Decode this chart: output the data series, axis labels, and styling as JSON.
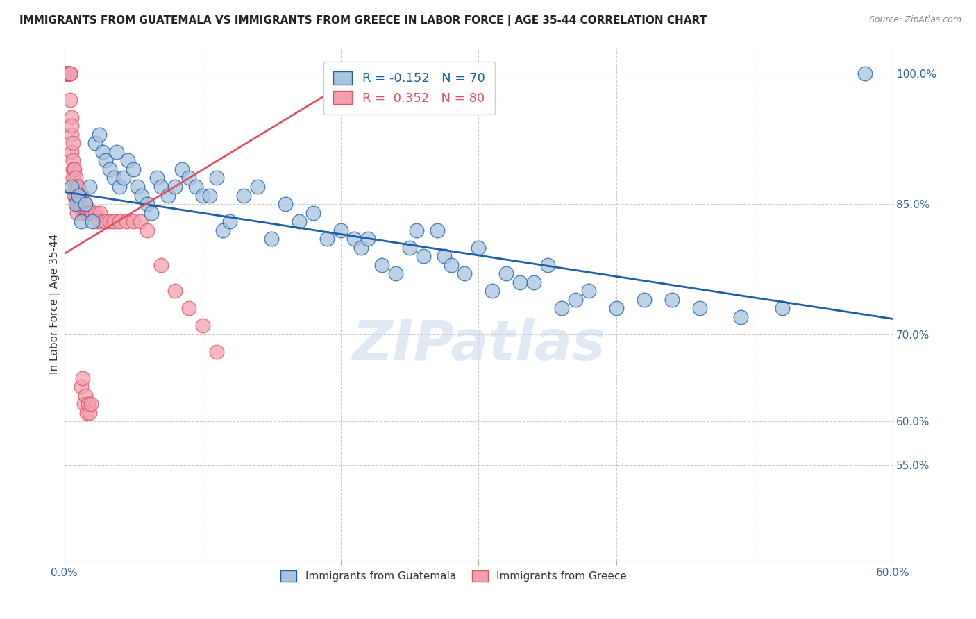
{
  "title": "IMMIGRANTS FROM GUATEMALA VS IMMIGRANTS FROM GREECE IN LABOR FORCE | AGE 35-44 CORRELATION CHART",
  "source": "Source: ZipAtlas.com",
  "ylabel": "In Labor Force | Age 35-44",
  "x_min": 0.0,
  "x_max": 0.6,
  "y_min": 0.44,
  "y_max": 1.03,
  "x_ticks": [
    0.0,
    0.1,
    0.2,
    0.3,
    0.4,
    0.5,
    0.6
  ],
  "x_tick_labels": [
    "0.0%",
    "",
    "",
    "",
    "",
    "",
    "60.0%"
  ],
  "y_ticks_right": [
    0.55,
    0.6,
    0.7,
    0.85,
    1.0
  ],
  "y_tick_labels_right": [
    "55.0%",
    "60.0%",
    "70.0%",
    "85.0%",
    "100.0%"
  ],
  "blue_R": -0.152,
  "blue_N": 70,
  "pink_R": 0.352,
  "pink_N": 80,
  "blue_color": "#a8c4e0",
  "pink_color": "#f4a0b0",
  "blue_line_color": "#1a5fa8",
  "pink_line_color": "#e05060",
  "watermark": "ZIPatlas",
  "blue_line_x0": 0.0,
  "blue_line_y0": 0.864,
  "blue_line_x1": 0.6,
  "blue_line_y1": 0.718,
  "pink_line_x0": 0.0,
  "pink_line_y0": 0.793,
  "pink_line_x1": 0.22,
  "pink_line_y1": 1.005,
  "blue_scatter_x": [
    0.005,
    0.008,
    0.01,
    0.012,
    0.015,
    0.018,
    0.02,
    0.022,
    0.025,
    0.028,
    0.03,
    0.033,
    0.036,
    0.038,
    0.04,
    0.043,
    0.046,
    0.05,
    0.053,
    0.056,
    0.06,
    0.063,
    0.067,
    0.07,
    0.075,
    0.08,
    0.085,
    0.09,
    0.095,
    0.1,
    0.105,
    0.11,
    0.115,
    0.12,
    0.13,
    0.14,
    0.15,
    0.16,
    0.17,
    0.18,
    0.19,
    0.2,
    0.21,
    0.215,
    0.22,
    0.23,
    0.24,
    0.25,
    0.255,
    0.26,
    0.27,
    0.275,
    0.28,
    0.29,
    0.3,
    0.31,
    0.32,
    0.33,
    0.34,
    0.35,
    0.36,
    0.37,
    0.38,
    0.4,
    0.42,
    0.44,
    0.46,
    0.49,
    0.52,
    0.58
  ],
  "blue_scatter_y": [
    0.87,
    0.85,
    0.86,
    0.83,
    0.85,
    0.87,
    0.83,
    0.92,
    0.93,
    0.91,
    0.9,
    0.89,
    0.88,
    0.91,
    0.87,
    0.88,
    0.9,
    0.89,
    0.87,
    0.86,
    0.85,
    0.84,
    0.88,
    0.87,
    0.86,
    0.87,
    0.89,
    0.88,
    0.87,
    0.86,
    0.86,
    0.88,
    0.82,
    0.83,
    0.86,
    0.87,
    0.81,
    0.85,
    0.83,
    0.84,
    0.81,
    0.82,
    0.81,
    0.8,
    0.81,
    0.78,
    0.77,
    0.8,
    0.82,
    0.79,
    0.82,
    0.79,
    0.78,
    0.77,
    0.8,
    0.75,
    0.77,
    0.76,
    0.76,
    0.78,
    0.73,
    0.74,
    0.75,
    0.73,
    0.74,
    0.74,
    0.73,
    0.72,
    0.73,
    1.0
  ],
  "pink_scatter_x": [
    0.001,
    0.001,
    0.001,
    0.001,
    0.001,
    0.001,
    0.002,
    0.002,
    0.002,
    0.002,
    0.002,
    0.002,
    0.003,
    0.003,
    0.003,
    0.003,
    0.003,
    0.004,
    0.004,
    0.004,
    0.004,
    0.005,
    0.005,
    0.005,
    0.005,
    0.006,
    0.006,
    0.006,
    0.006,
    0.007,
    0.007,
    0.007,
    0.008,
    0.008,
    0.008,
    0.009,
    0.009,
    0.009,
    0.01,
    0.01,
    0.01,
    0.011,
    0.011,
    0.012,
    0.012,
    0.013,
    0.013,
    0.014,
    0.015,
    0.015,
    0.016,
    0.017,
    0.018,
    0.019,
    0.02,
    0.022,
    0.024,
    0.026,
    0.028,
    0.03,
    0.033,
    0.036,
    0.04,
    0.045,
    0.05,
    0.055,
    0.06,
    0.07,
    0.08,
    0.09,
    0.1,
    0.11,
    0.012,
    0.013,
    0.014,
    0.015,
    0.016,
    0.017,
    0.018,
    0.019
  ],
  "pink_scatter_y": [
    1.0,
    1.0,
    1.0,
    1.0,
    1.0,
    1.0,
    1.0,
    1.0,
    1.0,
    1.0,
    1.0,
    1.0,
    1.0,
    1.0,
    1.0,
    1.0,
    1.0,
    1.0,
    1.0,
    1.0,
    0.97,
    0.95,
    0.93,
    0.91,
    0.94,
    0.92,
    0.9,
    0.89,
    0.88,
    0.89,
    0.87,
    0.86,
    0.88,
    0.87,
    0.86,
    0.87,
    0.85,
    0.84,
    0.87,
    0.86,
    0.85,
    0.86,
    0.85,
    0.86,
    0.85,
    0.86,
    0.84,
    0.85,
    0.85,
    0.84,
    0.84,
    0.84,
    0.84,
    0.84,
    0.84,
    0.84,
    0.83,
    0.84,
    0.83,
    0.83,
    0.83,
    0.83,
    0.83,
    0.83,
    0.83,
    0.83,
    0.82,
    0.78,
    0.75,
    0.73,
    0.71,
    0.68,
    0.64,
    0.65,
    0.62,
    0.63,
    0.61,
    0.62,
    0.61,
    0.62
  ]
}
